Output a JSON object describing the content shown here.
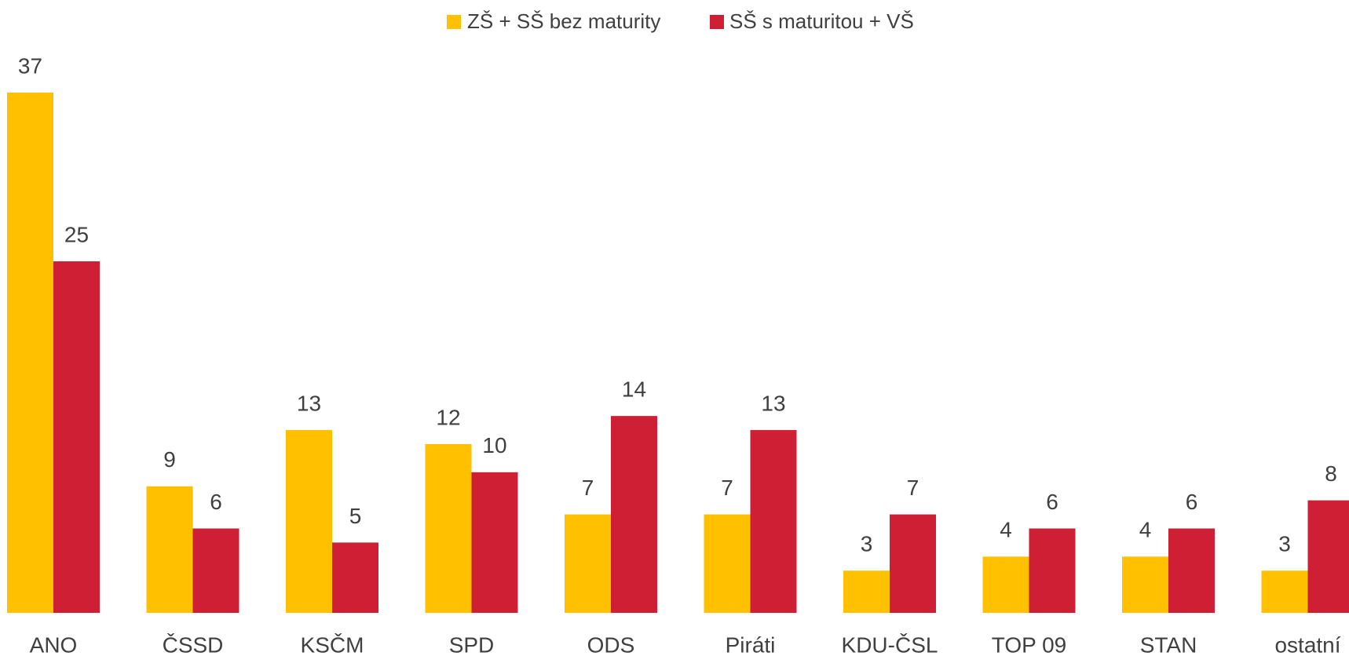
{
  "chart_data": {
    "type": "bar",
    "categories": [
      "ANO",
      "ČSSD",
      "KSČM",
      "SPD",
      "ODS",
      "Piráti",
      "KDU-ČSL",
      "TOP 09",
      "STAN",
      "ostatní"
    ],
    "series": [
      {
        "name": "ZŠ + SŠ bez maturity",
        "color": "#FFC000",
        "values": [
          37,
          9,
          13,
          12,
          7,
          7,
          3,
          4,
          4,
          3
        ]
      },
      {
        "name": "SŠ s maturitou + VŠ",
        "color": "#CF1F35",
        "values": [
          25,
          6,
          5,
          10,
          14,
          13,
          7,
          6,
          6,
          8
        ]
      }
    ],
    "legend": "top"
  }
}
